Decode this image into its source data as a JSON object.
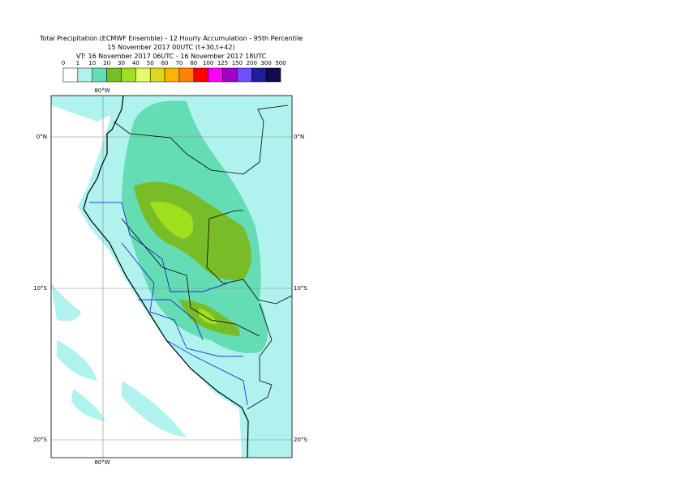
{
  "header": {
    "title": "Total Precipitation (ECMWF Ensemble) - 12 Hourly Accumulation - 95th Percentile",
    "subtitle": "15 November 2017 00UTC (t+30,t+42)",
    "valid_time": "VT: 16 November 2017 06UTC - 16 November 2017 18UTC"
  },
  "legend": {
    "labels": [
      "0",
      "1",
      "10",
      "20",
      "30",
      "40",
      "50",
      "60",
      "70",
      "80",
      "100",
      "125",
      "150",
      "200",
      "300",
      "500"
    ],
    "colors": [
      "#ffffff",
      "#b0f2ee",
      "#64dcb4",
      "#78bc28",
      "#9ee01e",
      "#e2fc6a",
      "#dcd81e",
      "#fcb400",
      "#fc8200",
      "#fc0000",
      "#fc00fc",
      "#a000c8",
      "#6e50fa",
      "#1e1e9c",
      "#0e0e4c"
    ]
  },
  "map": {
    "lon_label": "80°W",
    "lat_labels": [
      "0°N",
      "10°S",
      "20°S"
    ]
  }
}
